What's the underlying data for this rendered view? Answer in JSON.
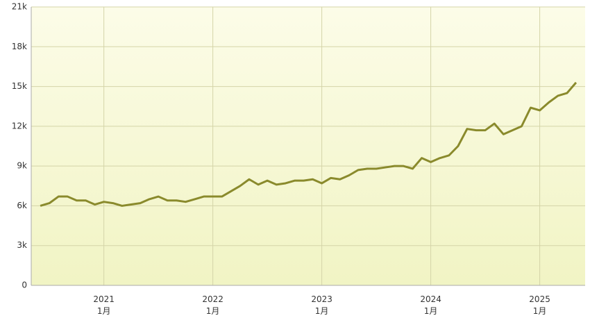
{
  "chart_data": {
    "type": "line",
    "x": [
      "2020-06",
      "2020-07",
      "2020-08",
      "2020-09",
      "2020-10",
      "2020-11",
      "2020-12",
      "2021-01",
      "2021-02",
      "2021-03",
      "2021-04",
      "2021-05",
      "2021-06",
      "2021-07",
      "2021-08",
      "2021-09",
      "2021-10",
      "2021-11",
      "2021-12",
      "2022-01",
      "2022-02",
      "2022-03",
      "2022-04",
      "2022-05",
      "2022-06",
      "2022-07",
      "2022-08",
      "2022-09",
      "2022-10",
      "2022-11",
      "2022-12",
      "2023-01",
      "2023-02",
      "2023-03",
      "2023-04",
      "2023-05",
      "2023-06",
      "2023-07",
      "2023-08",
      "2023-09",
      "2023-10",
      "2023-11",
      "2023-12",
      "2024-01",
      "2024-02",
      "2024-03",
      "2024-04",
      "2024-05",
      "2024-06",
      "2024-07",
      "2024-08",
      "2024-09",
      "2024-10",
      "2024-11",
      "2024-12",
      "2025-01",
      "2025-02",
      "2025-03",
      "2025-04",
      "2025-05"
    ],
    "series": [
      {
        "color": "#8a8a2c",
        "values": [
          6000,
          6200,
          6700,
          6700,
          6400,
          6400,
          6100,
          6300,
          6200,
          6000,
          6100,
          6200,
          6500,
          6700,
          6400,
          6400,
          6300,
          6500,
          6700,
          6700,
          6700,
          7100,
          7500,
          8000,
          7600,
          7900,
          7600,
          7700,
          7900,
          7900,
          8000,
          7700,
          8100,
          8000,
          8300,
          8700,
          8800,
          8800,
          8900,
          9000,
          9000,
          8800,
          9600,
          9300,
          9600,
          9800,
          10500,
          11800,
          11700,
          11700,
          12200,
          11400,
          11700,
          12000,
          13400,
          13200,
          13800,
          14300,
          14500,
          15300
        ]
      }
    ],
    "xlim": [
      "2020-05",
      "2025-06"
    ],
    "xticks": [
      {
        "value": "2021-01",
        "label": "2021\n1月"
      },
      {
        "value": "2022-01",
        "label": "2022\n1月"
      },
      {
        "value": "2023-01",
        "label": "2023\n1月"
      },
      {
        "value": "2024-01",
        "label": "2024\n1月"
      },
      {
        "value": "2025-01",
        "label": "2025\n1月"
      }
    ],
    "ylim": [
      0,
      21000
    ],
    "yticks": [
      0,
      {
        "value": 3000,
        "label": "3k"
      },
      {
        "value": 6000,
        "label": "6k"
      },
      {
        "value": 9000,
        "label": "9k"
      },
      {
        "value": 12000,
        "label": "12k"
      },
      {
        "value": 15000,
        "label": "15k"
      },
      {
        "value": 18000,
        "label": "18k"
      },
      {
        "value": 21000,
        "label": "21k"
      }
    ],
    "grid": true
  }
}
